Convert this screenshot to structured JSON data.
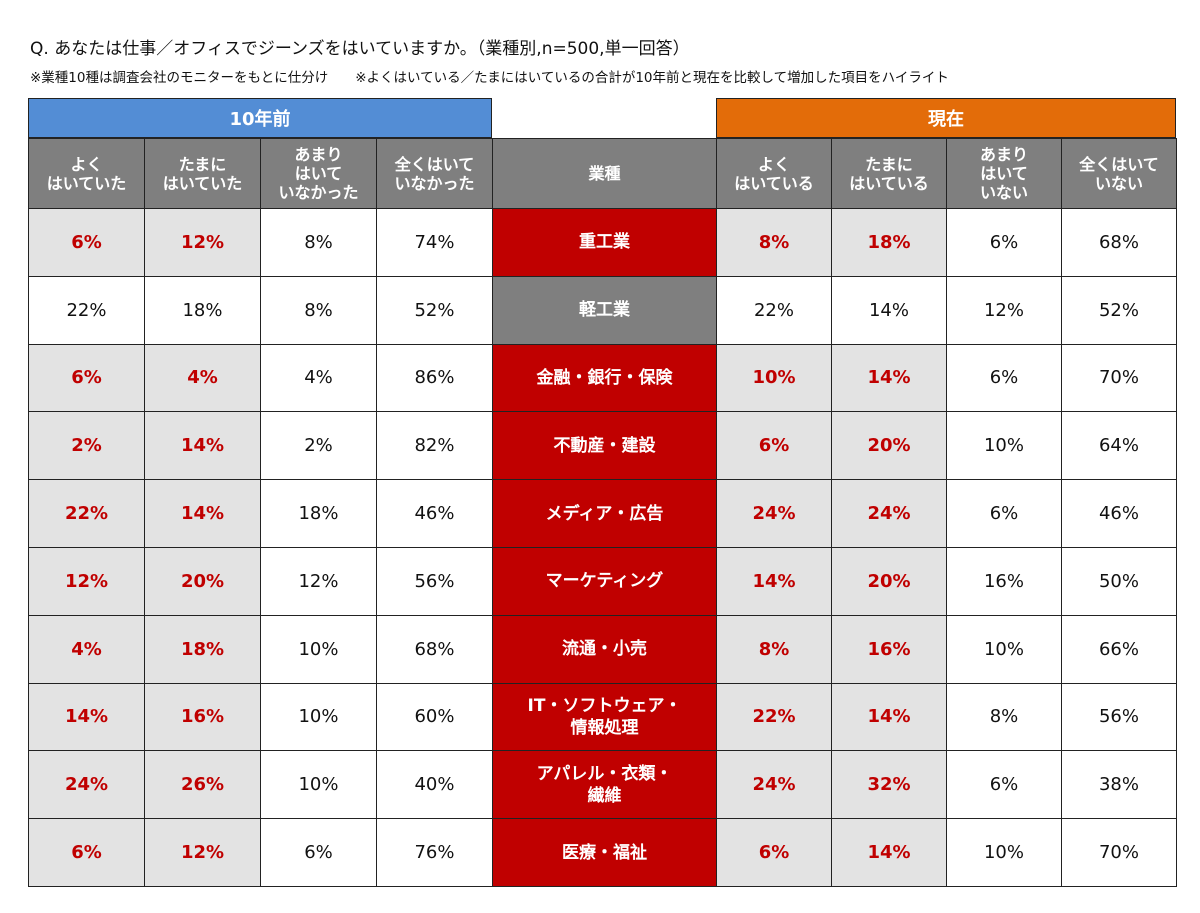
{
  "title": "Q. あなたは仕事／オフィスでジーンズをはいていますか。（業種別,n=500,単一回答）",
  "note": "※業種10種は調査会社のモニターをもとに仕分け　　※よくはいている／たまにはいているの合計が10年前と現在を比較して増加した項目をハイライト",
  "colors": {
    "past_header": "#538dd5",
    "now_header": "#e36c09",
    "highlight_text": "#c00000",
    "highlight_bg": "#e3e3e3",
    "header_bg": "#7f7f7f"
  },
  "chart_data": {
    "type": "table",
    "groups": {
      "past": "10年前",
      "now": "現在"
    },
    "industry_header": "業種",
    "past_columns": [
      "よく\nはいていた",
      "たまに\nはいていた",
      "あまり\nはいて\nいなかった",
      "全くはいて\nいなかった"
    ],
    "now_columns": [
      "よく\nはいている",
      "たまに\nはいている",
      "あまり\nはいて\nいない",
      "全くはいて\nいない"
    ],
    "rows": [
      {
        "industry": "重工業",
        "highlight": true,
        "past": [
          "6%",
          "12%",
          "8%",
          "74%"
        ],
        "now": [
          "8%",
          "18%",
          "6%",
          "68%"
        ]
      },
      {
        "industry": "軽工業",
        "highlight": false,
        "past": [
          "22%",
          "18%",
          "8%",
          "52%"
        ],
        "now": [
          "22%",
          "14%",
          "12%",
          "52%"
        ]
      },
      {
        "industry": "金融・銀行・保険",
        "highlight": true,
        "past": [
          "6%",
          "4%",
          "4%",
          "86%"
        ],
        "now": [
          "10%",
          "14%",
          "6%",
          "70%"
        ]
      },
      {
        "industry": "不動産・建設",
        "highlight": true,
        "past": [
          "2%",
          "14%",
          "2%",
          "82%"
        ],
        "now": [
          "6%",
          "20%",
          "10%",
          "64%"
        ]
      },
      {
        "industry": "メディア・広告",
        "highlight": true,
        "past": [
          "22%",
          "14%",
          "18%",
          "46%"
        ],
        "now": [
          "24%",
          "24%",
          "6%",
          "46%"
        ]
      },
      {
        "industry": "マーケティング",
        "highlight": true,
        "past": [
          "12%",
          "20%",
          "12%",
          "56%"
        ],
        "now": [
          "14%",
          "20%",
          "16%",
          "50%"
        ]
      },
      {
        "industry": "流通・小売",
        "highlight": true,
        "past": [
          "4%",
          "18%",
          "10%",
          "68%"
        ],
        "now": [
          "8%",
          "16%",
          "10%",
          "66%"
        ]
      },
      {
        "industry": "IT・ソフトウェア・\n情報処理",
        "highlight": true,
        "past": [
          "14%",
          "16%",
          "10%",
          "60%"
        ],
        "now": [
          "22%",
          "14%",
          "8%",
          "56%"
        ]
      },
      {
        "industry": "アパレル・衣類・\n繊維",
        "highlight": true,
        "past": [
          "24%",
          "26%",
          "10%",
          "40%"
        ],
        "now": [
          "24%",
          "32%",
          "6%",
          "38%"
        ]
      },
      {
        "industry": "医療・福祉",
        "highlight": true,
        "past": [
          "6%",
          "12%",
          "6%",
          "76%"
        ],
        "now": [
          "6%",
          "14%",
          "10%",
          "70%"
        ]
      }
    ]
  }
}
